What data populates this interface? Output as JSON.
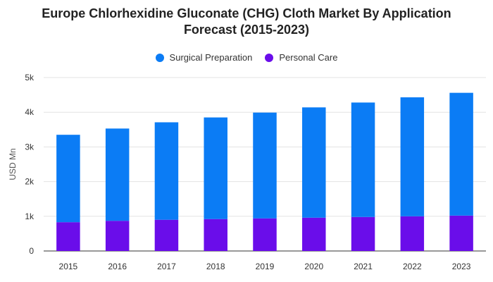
{
  "chart_data": {
    "type": "bar",
    "stacked": true,
    "title_line1": "Europe Chlorhexidine Gluconate (CHG) Cloth Market By Application",
    "title_line2": "Forecast (2015-2023)",
    "xlabel": "",
    "ylabel": "USD Mn",
    "categories": [
      "2015",
      "2016",
      "2017",
      "2018",
      "2019",
      "2020",
      "2021",
      "2022",
      "2023"
    ],
    "series": [
      {
        "name": "Personal Care",
        "color": "#6a0dea",
        "values": [
          830,
          870,
          900,
          920,
          940,
          960,
          980,
          1000,
          1020
        ]
      },
      {
        "name": "Surgical Preparation",
        "color": "#0b7cf5",
        "values": [
          2520,
          2660,
          2810,
          2930,
          3050,
          3180,
          3300,
          3430,
          3540
        ]
      }
    ],
    "legend_order": [
      "Surgical Preparation",
      "Personal Care"
    ],
    "ylim": [
      0,
      5000
    ],
    "yticks": [
      0,
      1000,
      2000,
      3000,
      4000,
      5000
    ],
    "ytick_labels": [
      "0",
      "1k",
      "2k",
      "3k",
      "4k",
      "5k"
    ],
    "grid": true,
    "legend_position": "top-center"
  }
}
